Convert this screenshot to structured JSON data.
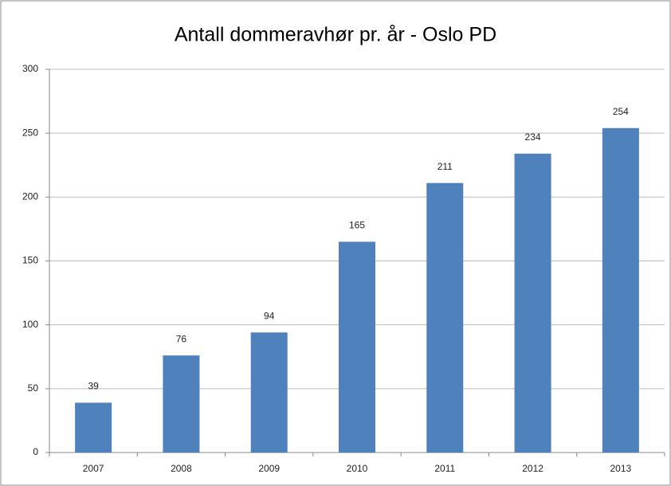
{
  "chart_data": {
    "type": "bar",
    "title": "Antall dommeravhør pr. år - Oslo PD",
    "categories": [
      "2007",
      "2008",
      "2009",
      "2010",
      "2011",
      "2012",
      "2013"
    ],
    "values": [
      39,
      76,
      94,
      165,
      211,
      234,
      254
    ],
    "color": "#4f81bd",
    "ylim": [
      0,
      300
    ],
    "yticks": [
      0,
      50,
      100,
      150,
      200,
      250,
      300
    ],
    "grid": true
  }
}
